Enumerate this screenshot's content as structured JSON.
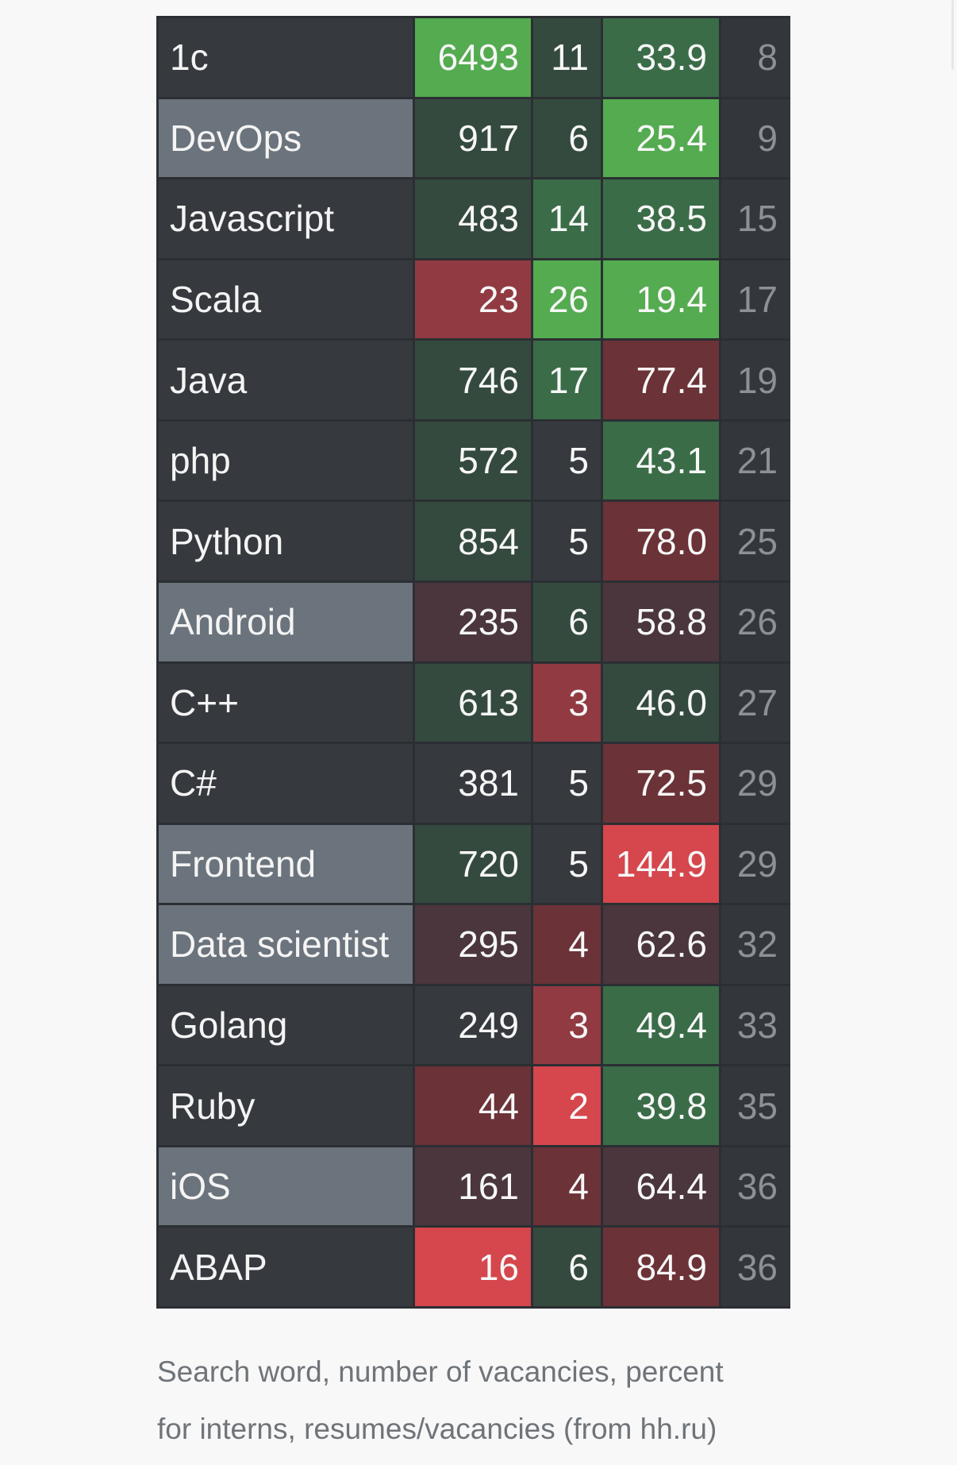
{
  "table": {
    "rows": [
      {
        "name": "1c",
        "vacancies": "6493",
        "interns": "11",
        "ratio": "33.9",
        "rank": "8"
      },
      {
        "name": "DevOps",
        "vacancies": "917",
        "interns": "6",
        "ratio": "25.4",
        "rank": "9"
      },
      {
        "name": "Javascript",
        "vacancies": "483",
        "interns": "14",
        "ratio": "38.5",
        "rank": "15"
      },
      {
        "name": "Scala",
        "vacancies": "23",
        "interns": "26",
        "ratio": "19.4",
        "rank": "17"
      },
      {
        "name": "Java",
        "vacancies": "746",
        "interns": "17",
        "ratio": "77.4",
        "rank": "19"
      },
      {
        "name": "php",
        "vacancies": "572",
        "interns": "5",
        "ratio": "43.1",
        "rank": "21"
      },
      {
        "name": "Python",
        "vacancies": "854",
        "interns": "5",
        "ratio": "78.0",
        "rank": "25"
      },
      {
        "name": "Android",
        "vacancies": "235",
        "interns": "6",
        "ratio": "58.8",
        "rank": "26"
      },
      {
        "name": "C++",
        "vacancies": "613",
        "interns": "3",
        "ratio": "46.0",
        "rank": "27"
      },
      {
        "name": "C#",
        "vacancies": "381",
        "interns": "5",
        "ratio": "72.5",
        "rank": "29"
      },
      {
        "name": "Frontend",
        "vacancies": "720",
        "interns": "5",
        "ratio": "144.9",
        "rank": "29"
      },
      {
        "name": "Data scientist",
        "vacancies": "295",
        "interns": "4",
        "ratio": "62.6",
        "rank": "32"
      },
      {
        "name": "Golang",
        "vacancies": "249",
        "interns": "3",
        "ratio": "49.4",
        "rank": "33"
      },
      {
        "name": "Ruby",
        "vacancies": "44",
        "interns": "2",
        "ratio": "39.8",
        "rank": "35"
      },
      {
        "name": "iOS",
        "vacancies": "161",
        "interns": "4",
        "ratio": "64.4",
        "rank": "36"
      },
      {
        "name": "ABAP",
        "vacancies": "16",
        "interns": "6",
        "ratio": "84.9",
        "rank": "36"
      }
    ]
  },
  "caption": {
    "line1": "Search word, number of vacancies, percent",
    "line2": "for interns, resumes/vacancies (from hh.ru)"
  }
}
